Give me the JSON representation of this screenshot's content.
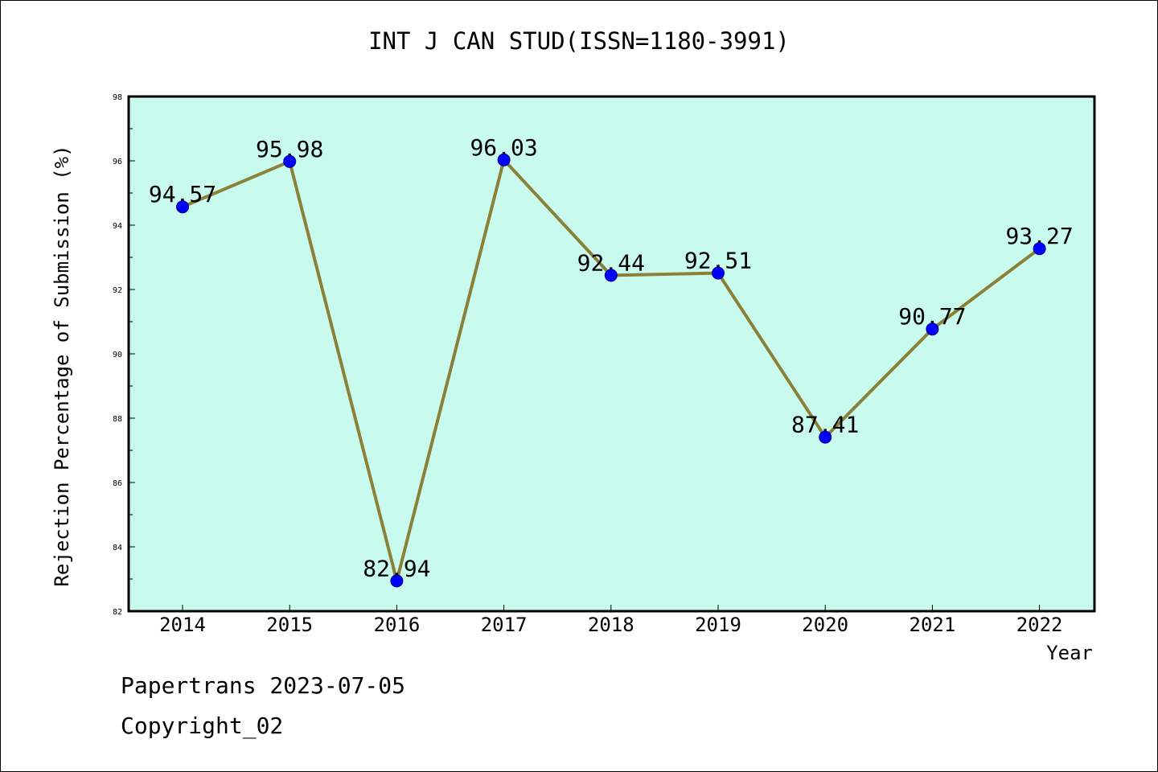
{
  "title": "INT J CAN STUD(ISSN=1180-3991)",
  "footer": {
    "line1": "Papertrans 2023-07-05",
    "line2": "Copyright_02"
  },
  "chart_data": {
    "type": "line",
    "title": "INT J CAN STUD(ISSN=1180-3991)",
    "xlabel": "Year",
    "ylabel": "Rejection Percentage of Submission (%)",
    "categories": [
      "2014",
      "2015",
      "2016",
      "2017",
      "2018",
      "2019",
      "2020",
      "2021",
      "2022"
    ],
    "series": [
      {
        "values": [
          94.57,
          95.98,
          82.94,
          96.03,
          92.44,
          92.51,
          87.41,
          90.77,
          93.27
        ]
      }
    ],
    "data_labels": [
      "94.57",
      "95.98",
      "82.94",
      "96.03",
      "92.44",
      "92.51",
      "87.41",
      "90.77",
      "93.27"
    ],
    "ylim": [
      82,
      98
    ],
    "yticks": [
      82,
      84,
      86,
      88,
      90,
      92,
      94,
      96,
      98
    ],
    "grid": false,
    "colors": {
      "plot_background": "#c8fbee",
      "line": "#8b8038",
      "marker": "#0000ff"
    }
  }
}
